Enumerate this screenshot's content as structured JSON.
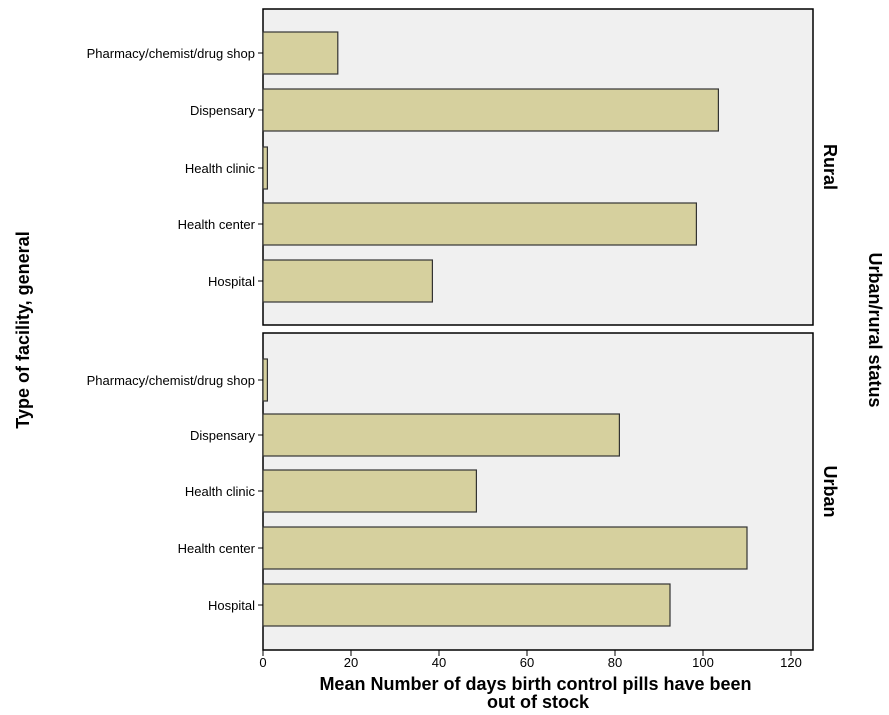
{
  "chart_data": {
    "type": "bar",
    "orientation": "horizontal",
    "xlabel_lines": [
      "Mean Number of days birth control pills have been",
      "out of stock"
    ],
    "ylabel": "Type of facility, general",
    "facet_label": "Urban/rural status",
    "xlim": [
      0,
      125
    ],
    "xticks": [
      "0",
      "20",
      "40",
      "60",
      "80",
      "100",
      "120"
    ],
    "grid": false,
    "bar_color": "#d6d09e",
    "bar_stroke": "#333333",
    "panel_background": "#f0f0f0",
    "categories": [
      "Pharmacy/chemist/drug shop",
      "Dispensary",
      "Health clinic",
      "Health center",
      "Hospital"
    ],
    "panels": [
      {
        "name": "Rural",
        "values": [
          17,
          103.5,
          1,
          98.5,
          38.5
        ]
      },
      {
        "name": "Urban",
        "values": [
          1,
          81,
          48.5,
          110,
          92.5
        ]
      }
    ]
  }
}
